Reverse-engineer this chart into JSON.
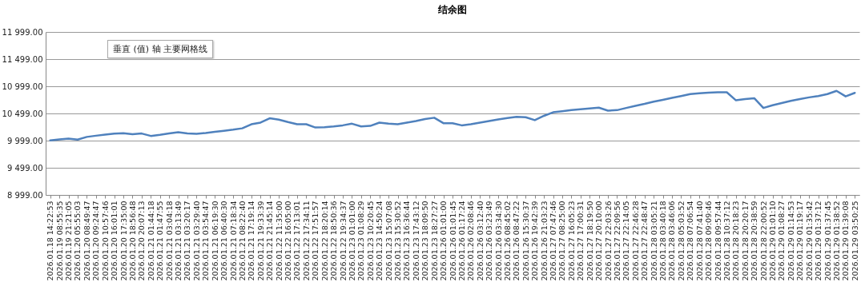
{
  "chart_data": {
    "type": "line",
    "title": "结余图",
    "annotations": [
      "垂直 (值) 轴 主要网格线"
    ],
    "categories": [
      "2026.01.18 14:22:53",
      "2026.01.19 08:55:35",
      "2026.01.19 21:21:05",
      "2026.01.20 05:55:03",
      "2026.01.20 08:49:47",
      "2026.01.20 09:24:47",
      "2026.01.20 10:57:46",
      "2026.01.20 16:01:01",
      "2026.01.20 17:35:00",
      "2026.01.20 18:56:48",
      "2026.01.20 20:07:13",
      "2026.01.21 01:44:18",
      "2026.01.21 01:47:55",
      "2026.01.21 03:04:18",
      "2026.01.21 03:13:49",
      "2026.01.21 03:20:17",
      "2026.01.21 03:29:40",
      "2026.01.21 03:54:47",
      "2026.01.21 06:19:30",
      "2026.01.21 06:40:30",
      "2026.01.21 07:18:34",
      "2026.01.21 08:22:40",
      "2026.01.21 17:19:14",
      "2026.01.21 19:33:39",
      "2026.01.21 21:45:14",
      "2026.01.22 11:35:00",
      "2026.01.22 16:05:00",
      "2026.01.22 17:13:01",
      "2026.01.22 17:34:11",
      "2026.01.22 17:51:57",
      "2026.01.22 18:20:14",
      "2026.01.22 18:50:36",
      "2026.01.22 19:34:37",
      "2026.01.23 01:01:00",
      "2026.01.23 01:08:29",
      "2026.01.23 10:20:45",
      "2026.01.23 14:50:24",
      "2026.01.23 15:07:08",
      "2026.01.23 15:30:52",
      "2026.01.23 16:36:44",
      "2026.01.23 17:43:12",
      "2026.01.23 18:09:50",
      "2026.01.23 18:27:27",
      "2026.01.26 01:01:00",
      "2026.01.26 01:01:45",
      "2026.01.26 01:17:24",
      "2026.01.26 02:08:46",
      "2026.01.26 03:12:40",
      "2026.01.26 03:23:49",
      "2026.01.26 03:34:30",
      "2026.01.26 08:45:02",
      "2026.01.26 08:47:22",
      "2026.01.26 15:30:37",
      "2026.01.26 19:42:39",
      "2026.01.26 21:03:23",
      "2026.01.27 07:47:46",
      "2026.01.27 08:25:00",
      "2026.01.27 16:05:23",
      "2026.01.27 17:00:31",
      "2026.01.27 18:19:50",
      "2026.01.27 20:10:00",
      "2026.01.27 22:03:26",
      "2026.01.27 22:09:56",
      "2026.01.27 22:14:05",
      "2026.01.27 22:46:28",
      "2026.01.27 22:48:47",
      "2026.01.28 03:05:21",
      "2026.01.28 03:40:18",
      "2026.01.28 03:46:06",
      "2026.01.28 05:03:52",
      "2026.01.28 07:06:54",
      "2026.01.28 07:41:40",
      "2026.01.28 09:09:46",
      "2026.01.28 09:57:44",
      "2026.01.28 10:37:12",
      "2026.01.28 20:18:23",
      "2026.01.28 20:20:17",
      "2026.01.28 20:38:59",
      "2026.01.28 22:00:52",
      "2026.01.29 01:01:10",
      "2026.01.29 01:08:27",
      "2026.01.29 01:14:53",
      "2026.01.29 01:19:17",
      "2026.01.29 01:35:42",
      "2026.01.29 01:37:12",
      "2026.01.29 01:37:45",
      "2026.01.29 01:38:52",
      "2026.01.29 01:39:08",
      "2026.01.29 03:50:25"
    ],
    "series": [
      {
        "color": "#4f81bd",
        "values": [
          10004,
          10020,
          10036,
          10018,
          10067,
          10089,
          10108,
          10128,
          10135,
          10115,
          10130,
          10085,
          10105,
          10130,
          10155,
          10130,
          10125,
          10140,
          10160,
          10180,
          10200,
          10225,
          10300,
          10330,
          10410,
          10386,
          10340,
          10300,
          10300,
          10240,
          10245,
          10260,
          10280,
          10310,
          10260,
          10270,
          10330,
          10310,
          10300,
          10330,
          10360,
          10396,
          10420,
          10320,
          10320,
          10280,
          10300,
          10330,
          10360,
          10390,
          10415,
          10436,
          10430,
          10375,
          10455,
          10520,
          10540,
          10560,
          10575,
          10590,
          10605,
          10550,
          10560,
          10600,
          10640,
          10675,
          10715,
          10750,
          10785,
          10820,
          10855,
          10870,
          10880,
          10888,
          10888,
          10740,
          10763,
          10780,
          10600,
          10650,
          10690,
          10730,
          10765,
          10795,
          10820,
          10855,
          10915,
          10813,
          10878
        ]
      }
    ],
    "ylim": [
      8999,
      11999
    ],
    "yticks": [
      {
        "value": 8999,
        "label": "8 999.00"
      },
      {
        "value": 9499,
        "label": "9 499.00"
      },
      {
        "value": 9999,
        "label": "9 999.00"
      },
      {
        "value": 10499,
        "label": "10 499.00"
      },
      {
        "value": 10999,
        "label": "10 999.00"
      },
      {
        "value": 11499,
        "label": "11 499.00"
      },
      {
        "value": 11999,
        "label": "11 999.00"
      }
    ],
    "grid": "y"
  }
}
